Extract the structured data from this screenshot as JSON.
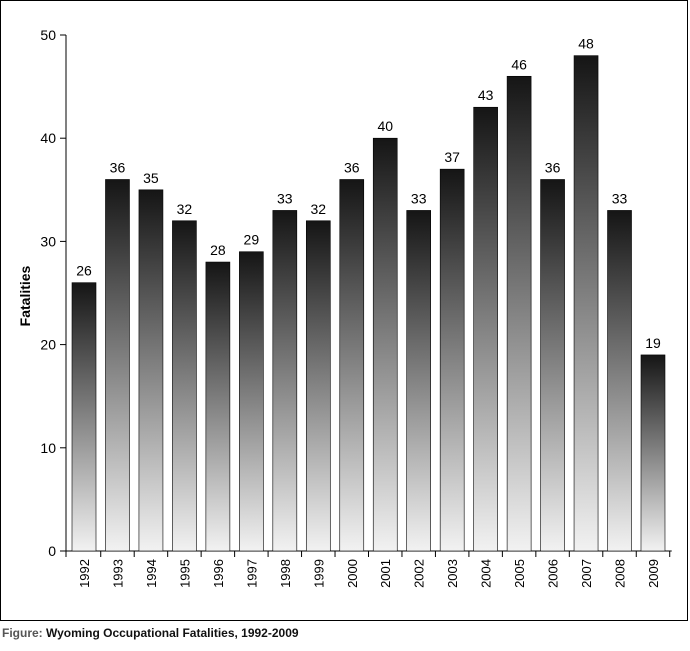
{
  "chart_data": {
    "type": "bar",
    "title": "Wyoming Occupational Fatalities, 1992-2009",
    "caption_prefix": "Figure:",
    "ylabel": "Fatalities",
    "xlabel": "",
    "ylim": [
      0,
      50
    ],
    "yticks": [
      0,
      10,
      20,
      30,
      40,
      50
    ],
    "grid": false,
    "categories": [
      "1992",
      "1993",
      "1994",
      "1995",
      "1996",
      "1997",
      "1998",
      "1999",
      "2000",
      "2001",
      "2002",
      "2003",
      "2004",
      "2005",
      "2006",
      "2007",
      "2008",
      "2009"
    ],
    "values": [
      26,
      36,
      35,
      32,
      28,
      29,
      33,
      32,
      36,
      40,
      33,
      37,
      43,
      46,
      36,
      48,
      33,
      19
    ],
    "bar_gradient": {
      "top": "#151515",
      "bottom": "#f2f2f2"
    }
  }
}
